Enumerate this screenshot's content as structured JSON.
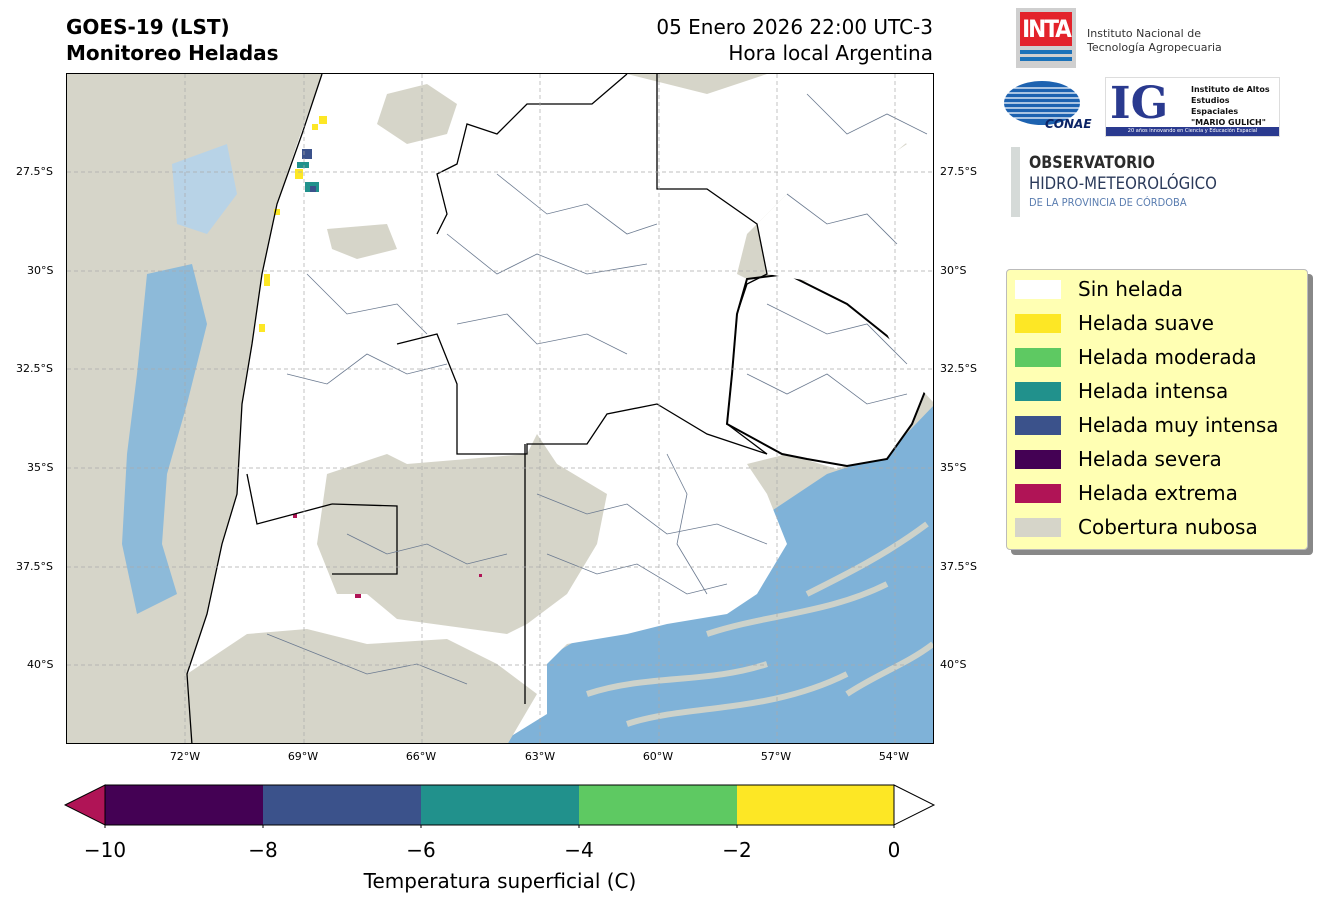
{
  "header": {
    "title_line1": "GOES-19 (LST)",
    "title_line2": "Monitoreo Heladas",
    "date_line1": "05 Enero 2026 22:00 UTC-3",
    "date_line2": "Hora local Argentina"
  },
  "map": {
    "lat_ticks": [
      "27.5°S",
      "30°S",
      "32.5°S",
      "35°S",
      "37.5°S",
      "40°S"
    ],
    "lon_ticks": [
      "72°W",
      "69°W",
      "66°W",
      "63°W",
      "60°W",
      "57°W",
      "54°W"
    ],
    "land_color": "#ffffff",
    "cloud_color": "#d6d5c9",
    "ocean_color": "#7fb2d8",
    "gridlines": true
  },
  "legend": {
    "items": [
      {
        "label": "Sin helada",
        "color": "#ffffff"
      },
      {
        "label": "Helada suave",
        "color": "#fde725"
      },
      {
        "label": "Helada moderada",
        "color": "#5ec962"
      },
      {
        "label": "Helada intensa",
        "color": "#21918c"
      },
      {
        "label": "Helada muy intensa",
        "color": "#3b528b"
      },
      {
        "label": "Helada severa",
        "color": "#440154"
      },
      {
        "label": "Helada extrema",
        "color": "#b01456"
      },
      {
        "label": "Cobertura nubosa",
        "color": "#d6d5c9"
      }
    ]
  },
  "colorbar": {
    "ticks": [
      "−10",
      "−8",
      "−6",
      "−4",
      "−2",
      "0"
    ],
    "label": "Temperatura superficial (C)",
    "colors": [
      "#440154",
      "#3b528b",
      "#21918c",
      "#5ec962",
      "#fde725"
    ],
    "under_color": "#b01456",
    "over_color": "#ffffff"
  },
  "logos": {
    "inta_mark": "INTA",
    "inta_text_line1": "Instituto Nacional de",
    "inta_text_line2": "Tecnología Agropecuaria",
    "conae_mark": "CONAE",
    "ig_mark": "IG",
    "ig_text_line1": "Instituto de Altos",
    "ig_text_line2": "Estudios Espaciales",
    "ig_text_line3": "\"MARIO GULICH\"",
    "ig_bar": "20 años innovando en Ciencia y Educación Espacial",
    "obs_line1": "OBSERVATORIO",
    "obs_line2": "HIDRO-METEOROLÓGICO",
    "obs_line3": "DE LA PROVINCIA DE CÓRDOBA"
  }
}
